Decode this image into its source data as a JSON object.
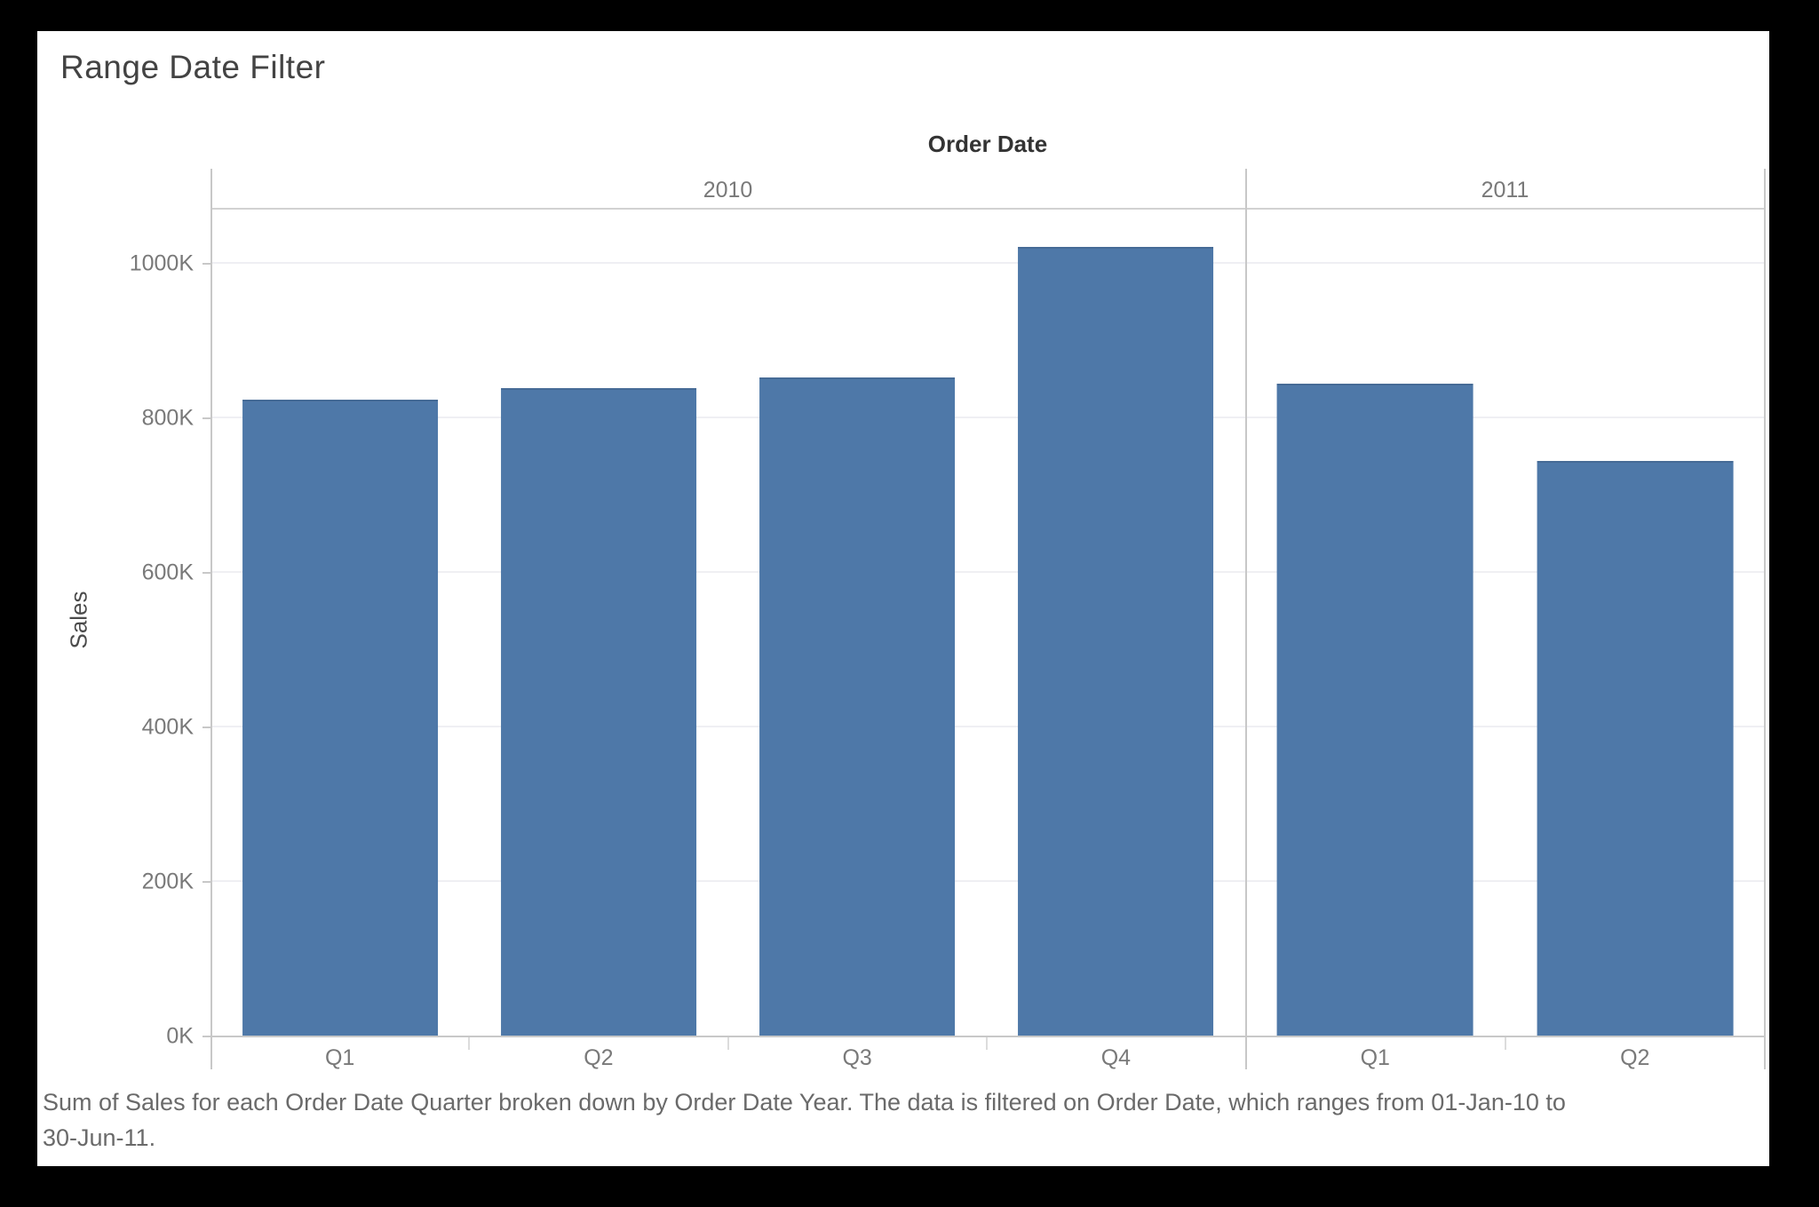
{
  "frame": {
    "title": "Range Date Filter"
  },
  "chart_data": {
    "type": "bar",
    "title": "Range Date Filter",
    "column_header": "Order Date",
    "ylabel": "Sales",
    "bar_color": "#4e78a8",
    "grid": true,
    "legend": "none",
    "unit": "K (thousands)",
    "ylim": [
      0,
      1071
    ],
    "y_ticks": [
      {
        "value": 0,
        "label": "0K"
      },
      {
        "value": 200,
        "label": "200K"
      },
      {
        "value": 400,
        "label": "400K"
      },
      {
        "value": 600,
        "label": "600K"
      },
      {
        "value": 800,
        "label": "800K"
      },
      {
        "value": 1000,
        "label": "1000K"
      }
    ],
    "groups": [
      {
        "year": "2010",
        "categories": [
          "Q1",
          "Q2",
          "Q3",
          "Q4"
        ],
        "values": [
          824,
          839,
          853,
          1022
        ]
      },
      {
        "year": "2011",
        "categories": [
          "Q1",
          "Q2"
        ],
        "values": [
          845,
          745
        ]
      }
    ]
  },
  "caption": {
    "lines": [
      "Sum of Sales for each Order Date Quarter broken down by Order Date Year. The data is filtered on Order Date, which ranges from 01-Jan-10 to",
      "30-Jun-11."
    ]
  }
}
